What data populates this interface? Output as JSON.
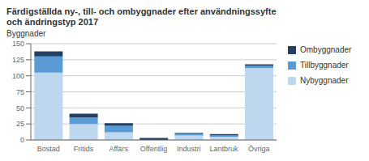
{
  "chart_data": {
    "type": "bar",
    "title": "Färdigställda ny-, till- och ombyggnader efter användningssyfte\noch ändringstyp 2017",
    "y_label": "Byggnader",
    "categories": [
      "Bostad",
      "Fritids",
      "Affärs",
      "Offentlig",
      "Industri",
      "Lantbruk",
      "Övriga"
    ],
    "series": [
      {
        "name": "Nybyggnader",
        "color": "#BDD7EE",
        "values": [
          105,
          25,
          12,
          0,
          7,
          5,
          112
        ]
      },
      {
        "name": "Tillbyggnader",
        "color": "#5B9BD5",
        "values": [
          25,
          10,
          10,
          0,
          3,
          2,
          4
        ]
      },
      {
        "name": "Ombyggnader",
        "color": "#243F60",
        "values": [
          8,
          6,
          4,
          3,
          1,
          2,
          2
        ]
      }
    ],
    "stacked": true,
    "ylim": [
      0,
      150
    ],
    "yticks": [
      0,
      25,
      50,
      75,
      100,
      125,
      150
    ],
    "grid": true,
    "legend": "right"
  }
}
